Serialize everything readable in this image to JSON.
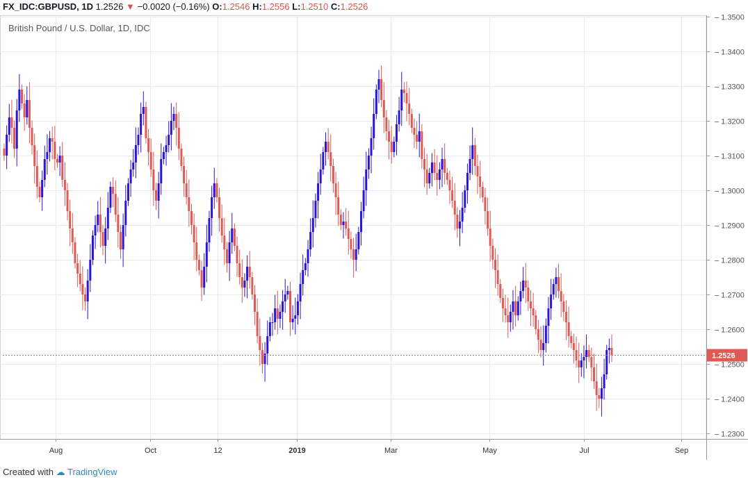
{
  "header": {
    "symbol": "FX_IDC:GBPUSD, 1D",
    "last": "1.2526",
    "change": "−0.0020 (−0.16%)",
    "o_label": "O:",
    "o": "1.2546",
    "h_label": "H:",
    "h": "1.2556",
    "l_label": "L:",
    "l": "1.2510",
    "c_label": "C:",
    "c": "1.2526",
    "down_color": "#d9534f"
  },
  "chart_data": {
    "type": "candlestick",
    "title": "British Pound / U.S. Dollar, 1D, IDC",
    "ylim": [
      1.228,
      1.352
    ],
    "y_ticks": [
      "1.2300",
      "1.2400",
      "1.2500",
      "1.2600",
      "1.2700",
      "1.2800",
      "1.2900",
      "1.3000",
      "1.3100",
      "1.3200",
      "1.3300",
      "1.3400",
      "1.3500"
    ],
    "x_ticks": [
      {
        "label": "Aug",
        "bold": false
      },
      {
        "label": "Oct",
        "bold": false
      },
      {
        "label": "12",
        "bold": false
      },
      {
        "label": "2019",
        "bold": true
      },
      {
        "label": "Mar",
        "bold": false
      },
      {
        "label": "May",
        "bold": false
      },
      {
        "label": "Jul",
        "bold": false
      },
      {
        "label": "Sep",
        "bold": false
      }
    ],
    "last_price": 1.2526,
    "last_price_label": "1.2526",
    "up_color": "#2b14d9",
    "down_color": "#e05a55",
    "closes": [
      1.31,
      1.316,
      1.321,
      1.318,
      1.312,
      1.323,
      1.329,
      1.325,
      1.321,
      1.326,
      1.318,
      1.313,
      1.307,
      1.301,
      1.298,
      1.303,
      1.309,
      1.311,
      1.315,
      1.314,
      1.309,
      1.308,
      1.31,
      1.303,
      1.3,
      1.294,
      1.289,
      1.285,
      1.279,
      1.276,
      1.273,
      1.27,
      1.268,
      1.274,
      1.28,
      1.287,
      1.29,
      1.293,
      1.288,
      1.284,
      1.289,
      1.295,
      1.301,
      1.299,
      1.293,
      1.288,
      1.283,
      1.29,
      1.297,
      1.302,
      1.306,
      1.308,
      1.313,
      1.316,
      1.322,
      1.324,
      1.315,
      1.311,
      1.306,
      1.3,
      1.297,
      1.302,
      1.309,
      1.311,
      1.313,
      1.316,
      1.32,
      1.322,
      1.318,
      1.312,
      1.307,
      1.302,
      1.298,
      1.294,
      1.29,
      1.285,
      1.28,
      1.277,
      1.272,
      1.278,
      1.285,
      1.292,
      1.298,
      1.302,
      1.298,
      1.292,
      1.287,
      1.283,
      1.279,
      1.285,
      1.289,
      1.284,
      1.279,
      1.275,
      1.272,
      1.274,
      1.278,
      1.275,
      1.27,
      1.265,
      1.258,
      1.254,
      1.25,
      1.253,
      1.258,
      1.262,
      1.262,
      1.266,
      1.263,
      1.265,
      1.268,
      1.27,
      1.271,
      1.262,
      1.263,
      1.264,
      1.268,
      1.273,
      1.277,
      1.279,
      1.283,
      1.288,
      1.292,
      1.297,
      1.302,
      1.306,
      1.311,
      1.314,
      1.311,
      1.307,
      1.302,
      1.298,
      1.293,
      1.29,
      1.291,
      1.289,
      1.286,
      1.283,
      1.28,
      1.283,
      1.288,
      1.294,
      1.3,
      1.306,
      1.31,
      1.315,
      1.322,
      1.329,
      1.332,
      1.326,
      1.321,
      1.317,
      1.314,
      1.311,
      1.314,
      1.319,
      1.323,
      1.329,
      1.328,
      1.325,
      1.322,
      1.318,
      1.316,
      1.314,
      1.317,
      1.309,
      1.306,
      1.302,
      1.305,
      1.308,
      1.305,
      1.303,
      1.306,
      1.309,
      1.305,
      1.303,
      1.3,
      1.297,
      1.293,
      1.289,
      1.291,
      1.295,
      1.3,
      1.305,
      1.309,
      1.313,
      1.307,
      1.304,
      1.301,
      1.298,
      1.294,
      1.289,
      1.284,
      1.28,
      1.277,
      1.273,
      1.269,
      1.266,
      1.264,
      1.262,
      1.265,
      1.268,
      1.264,
      1.268,
      1.271,
      1.274,
      1.272,
      1.268,
      1.266,
      1.264,
      1.26,
      1.257,
      1.254,
      1.256,
      1.261,
      1.266,
      1.27,
      1.273,
      1.275,
      1.271,
      1.268,
      1.265,
      1.262,
      1.258,
      1.256,
      1.254,
      1.251,
      1.249,
      1.251,
      1.252,
      1.254,
      1.252,
      1.249,
      1.245,
      1.241,
      1.24,
      1.243,
      1.247,
      1.254,
      1.2546,
      1.2526
    ]
  },
  "footer": {
    "created_with": "Created with",
    "brand": "TradingView"
  }
}
